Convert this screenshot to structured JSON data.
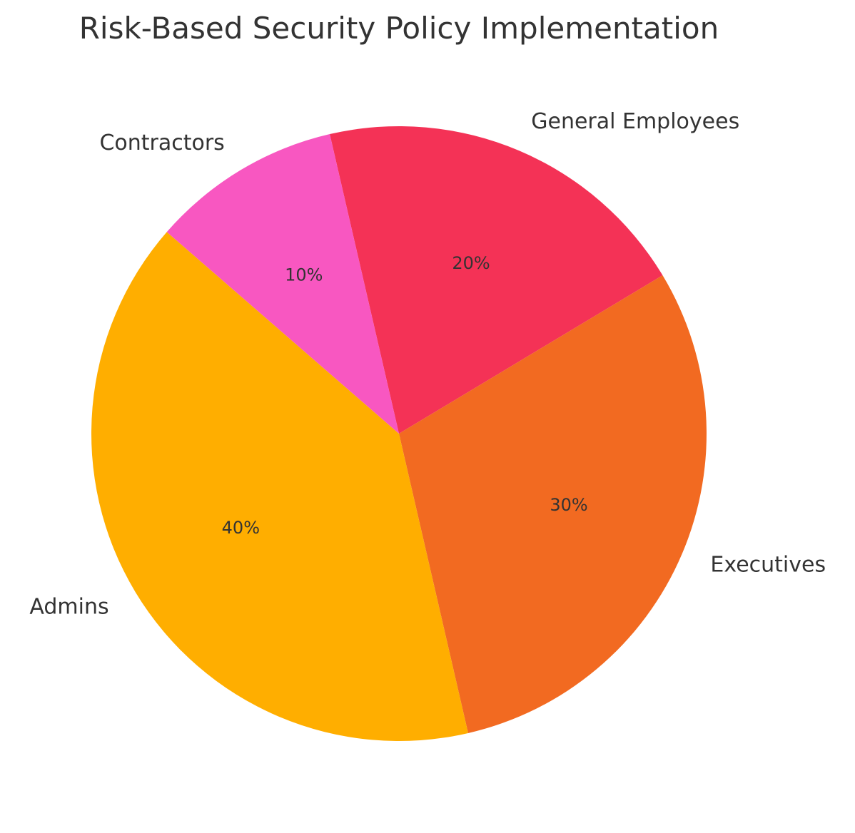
{
  "chart_data": {
    "type": "pie",
    "title": "Risk-Based Security Policy Implementation",
    "categories": [
      "General Employees",
      "Executives",
      "Admins",
      "Contractors"
    ],
    "values": [
      20,
      30,
      40,
      10
    ],
    "value_labels": [
      "20%",
      "30%",
      "40%",
      "10%"
    ],
    "colors": [
      "#F43256",
      "#F26A21",
      "#FFAE00",
      "#F857C1"
    ],
    "start_angle_deg": 103,
    "direction": "clockwise",
    "legend": "none"
  }
}
